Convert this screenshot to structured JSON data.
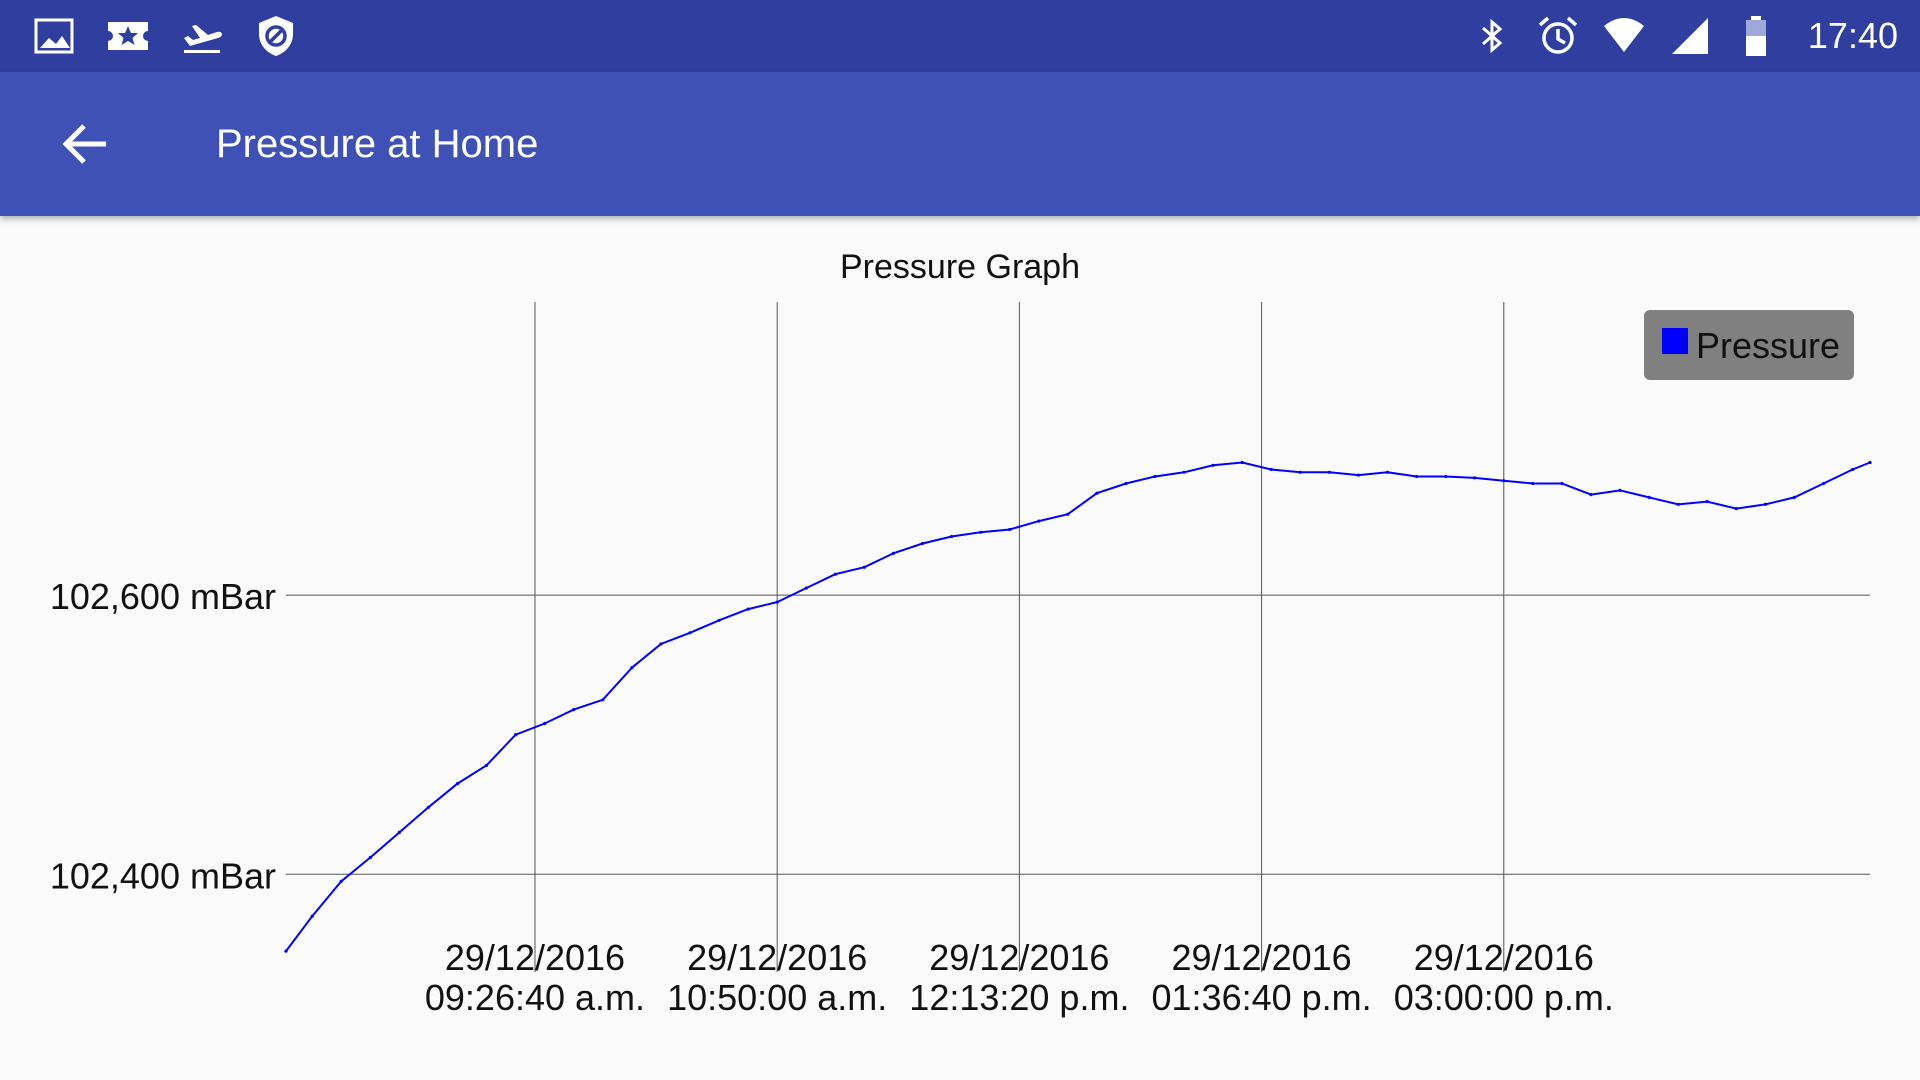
{
  "status_bar": {
    "left_icons": [
      "image-icon",
      "ticket-star-icon",
      "airplane-takeoff-icon",
      "shield-block-icon"
    ],
    "right_icons": [
      "bluetooth-icon",
      "alarm-icon",
      "wifi-icon",
      "cell-signal-icon",
      "battery-icon"
    ],
    "time": "17:40"
  },
  "app_bar": {
    "back_icon": "arrow-back-icon",
    "title": "Pressure at Home",
    "color": "#3f51b5",
    "status_color": "#303f9f"
  },
  "chart_data": {
    "type": "line",
    "title": "Pressure Graph",
    "xlabel": "",
    "ylabel": "",
    "ylim": [
      102330,
      102810
    ],
    "y_ticks": [
      {
        "value": 102600,
        "label": "102,600 mBar"
      },
      {
        "value": 102400,
        "label": "102,400 mBar"
      }
    ],
    "x_range": [
      "29/12/2016 08:01",
      "29/12/2016 17:06"
    ],
    "x_ticks": [
      {
        "value": "29/12/2016 09:26:40",
        "line1": "29/12/2016",
        "line2": "09:26:40 a.m."
      },
      {
        "value": "29/12/2016 10:50:00",
        "line1": "29/12/2016",
        "line2": "10:50:00 a.m."
      },
      {
        "value": "29/12/2016 12:13:20",
        "line1": "29/12/2016",
        "line2": "12:13:20 p.m."
      },
      {
        "value": "29/12/2016 13:36:40",
        "line1": "29/12/2016",
        "line2": "01:36:40 p.m."
      },
      {
        "value": "29/12/2016 15:00:00",
        "line1": "29/12/2016",
        "line2": "03:00:00 p.m."
      }
    ],
    "grid": true,
    "legend": {
      "position": "top-right",
      "background": "#808080"
    },
    "series": [
      {
        "name": "Pressure",
        "color": "#0000ff",
        "x": [
          "08:01",
          "08:10",
          "08:20",
          "08:30",
          "08:40",
          "08:50",
          "09:00",
          "09:10",
          "09:20",
          "09:30",
          "09:40",
          "09:50",
          "10:00",
          "10:10",
          "10:20",
          "10:30",
          "10:40",
          "10:50",
          "11:00",
          "11:10",
          "11:20",
          "11:30",
          "11:40",
          "11:50",
          "12:00",
          "12:10",
          "12:20",
          "12:30",
          "12:40",
          "12:50",
          "13:00",
          "13:10",
          "13:20",
          "13:30",
          "13:40",
          "13:50",
          "14:00",
          "14:10",
          "14:20",
          "14:30",
          "14:40",
          "14:50",
          "15:00",
          "15:10",
          "15:20",
          "15:30",
          "15:40",
          "15:50",
          "16:00",
          "16:10",
          "16:20",
          "16:30",
          "16:40",
          "16:50",
          "17:00",
          "17:06"
        ],
        "values": [
          102345,
          102370,
          102395,
          102412,
          102430,
          102448,
          102465,
          102478,
          102500,
          102508,
          102518,
          102525,
          102548,
          102565,
          102573,
          102582,
          102590,
          102595,
          102605,
          102615,
          102620,
          102630,
          102637,
          102642,
          102645,
          102647,
          102653,
          102658,
          102673,
          102680,
          102685,
          102688,
          102693,
          102695,
          102690,
          102688,
          102688,
          102686,
          102688,
          102685,
          102685,
          102684,
          102682,
          102680,
          102680,
          102672,
          102675,
          102670,
          102665,
          102667,
          102662,
          102665,
          102670,
          102680,
          102690,
          102695
        ]
      }
    ]
  }
}
